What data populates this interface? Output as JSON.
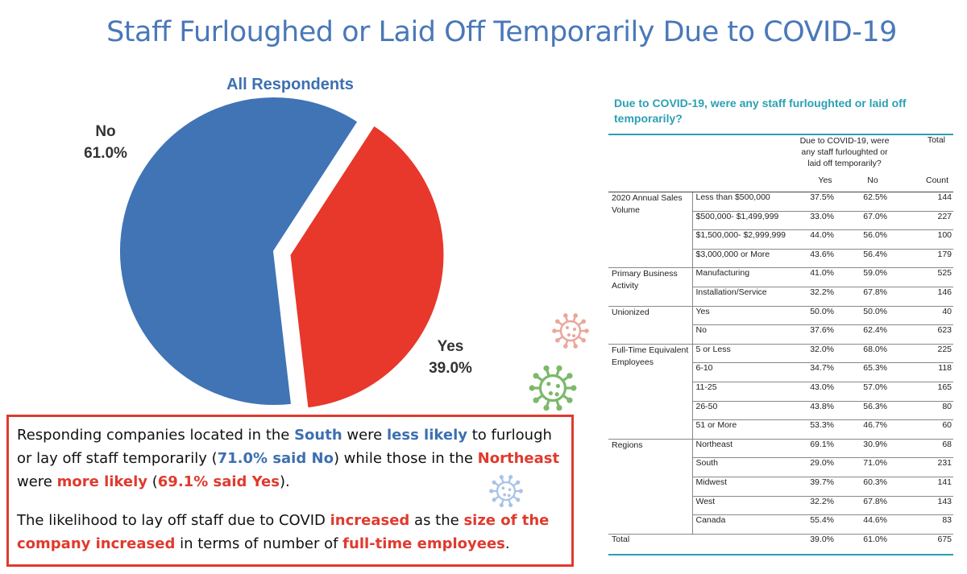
{
  "title": "Staff Furloughed or Laid Off Temporarily Due to COVID-19",
  "chart_data": {
    "type": "pie",
    "title": "All Respondents",
    "slices": [
      {
        "label": "No",
        "value": 61.0,
        "display": "61.0%",
        "color": "#4174b5"
      },
      {
        "label": "Yes",
        "value": 39.0,
        "display": "39.0%",
        "color": "#e8372b"
      }
    ],
    "exploded_slice": "Yes"
  },
  "callout": {
    "p1": [
      {
        "t": "Responding companies located in the ",
        "s": ""
      },
      {
        "t": "South",
        "s": "blue"
      },
      {
        "t": " were ",
        "s": ""
      },
      {
        "t": "less likely",
        "s": "blue"
      },
      {
        "t": " to furlough or lay off staff temporarily (",
        "s": ""
      },
      {
        "t": "71.0% said No",
        "s": "blue"
      },
      {
        "t": ") while those in the ",
        "s": ""
      },
      {
        "t": "Northeast",
        "s": "red"
      },
      {
        "t": " were ",
        "s": ""
      },
      {
        "t": "more likely",
        "s": "red"
      },
      {
        "t": " (",
        "s": ""
      },
      {
        "t": "69.1% said Yes",
        "s": "red"
      },
      {
        "t": ").",
        "s": ""
      }
    ],
    "p2": [
      {
        "t": "The likelihood to lay off staff due to COVID ",
        "s": ""
      },
      {
        "t": "increased",
        "s": "red"
      },
      {
        "t": " as the ",
        "s": ""
      },
      {
        "t": "size of the company increased",
        "s": "red"
      },
      {
        "t": " in terms of number of ",
        "s": ""
      },
      {
        "t": "full-time employees",
        "s": "red"
      },
      {
        "t": ".",
        "s": ""
      }
    ]
  },
  "decorations": {
    "virus_icons": [
      {
        "name": "virus-icon-red",
        "color": "#eaa79c"
      },
      {
        "name": "virus-icon-green",
        "color": "#7cb96b"
      },
      {
        "name": "virus-icon-blue",
        "color": "#a9c3e6"
      }
    ]
  },
  "table": {
    "question": "Due to COVID-19, were any staff furloughted or laid off temporarily?",
    "header_question": "Due to COVID-19, were any staff furloughted or laid off temporarily?",
    "header_total": "Total",
    "col_yes": "Yes",
    "col_no": "No",
    "col_count": "Count",
    "groups": [
      {
        "label": "2020 Annual Sales Volume",
        "rows": [
          {
            "label": "Less than $500,000",
            "yes": "37.5%",
            "no": "62.5%",
            "count": "144"
          },
          {
            "label": "$500,000- $1,499,999",
            "yes": "33.0%",
            "no": "67.0%",
            "count": "227"
          },
          {
            "label": "$1,500,000- $2,999,999",
            "yes": "44.0%",
            "no": "56.0%",
            "count": "100"
          },
          {
            "label": "$3,000,000 or More",
            "yes": "43.6%",
            "no": "56.4%",
            "count": "179"
          }
        ]
      },
      {
        "label": "Primary Business Activity",
        "rows": [
          {
            "label": "Manufacturing",
            "yes": "41.0%",
            "no": "59.0%",
            "count": "525"
          },
          {
            "label": "Installation/Service",
            "yes": "32.2%",
            "no": "67.8%",
            "count": "146"
          }
        ]
      },
      {
        "label": "Unionized",
        "rows": [
          {
            "label": "Yes",
            "yes": "50.0%",
            "no": "50.0%",
            "count": "40"
          },
          {
            "label": "No",
            "yes": "37.6%",
            "no": "62.4%",
            "count": "623"
          }
        ]
      },
      {
        "label": "Full-Time Equivalent Employees",
        "rows": [
          {
            "label": "5 or Less",
            "yes": "32.0%",
            "no": "68.0%",
            "count": "225"
          },
          {
            "label": "6-10",
            "yes": "34.7%",
            "no": "65.3%",
            "count": "118"
          },
          {
            "label": "11-25",
            "yes": "43.0%",
            "no": "57.0%",
            "count": "165"
          },
          {
            "label": "26-50",
            "yes": "43.8%",
            "no": "56.3%",
            "count": "80"
          },
          {
            "label": "51 or More",
            "yes": "53.3%",
            "no": "46.7%",
            "count": "60"
          }
        ]
      },
      {
        "label": "Regions",
        "rows": [
          {
            "label": "Northeast",
            "yes": "69.1%",
            "no": "30.9%",
            "count": "68"
          },
          {
            "label": "South",
            "yes": "29.0%",
            "no": "71.0%",
            "count": "231"
          },
          {
            "label": "Midwest",
            "yes": "39.7%",
            "no": "60.3%",
            "count": "141"
          },
          {
            "label": "West",
            "yes": "32.2%",
            "no": "67.8%",
            "count": "143"
          },
          {
            "label": "Canada",
            "yes": "55.4%",
            "no": "44.6%",
            "count": "83"
          }
        ]
      }
    ],
    "total": {
      "label": "Total",
      "yes": "39.0%",
      "no": "61.0%",
      "count": "675"
    }
  }
}
